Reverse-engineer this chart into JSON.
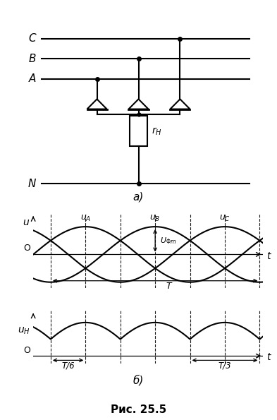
{
  "fig_width": 3.93,
  "fig_height": 5.95,
  "dpi": 100,
  "bg_color": "#ffffff",
  "line_color": "#000000",
  "title": "Рис. 25.5",
  "label_a": "а)",
  "label_b": "б)",
  "u_label": "u",
  "t_label": "t",
  "T_label": "T",
  "T6_label": "T/6",
  "T3_label": "T/3",
  "O_label": "O",
  "N_label": "N",
  "amplitude": 1.0,
  "phase_shifts": [
    0,
    -2.094395,
    -4.18879
  ],
  "period": 6.283185
}
